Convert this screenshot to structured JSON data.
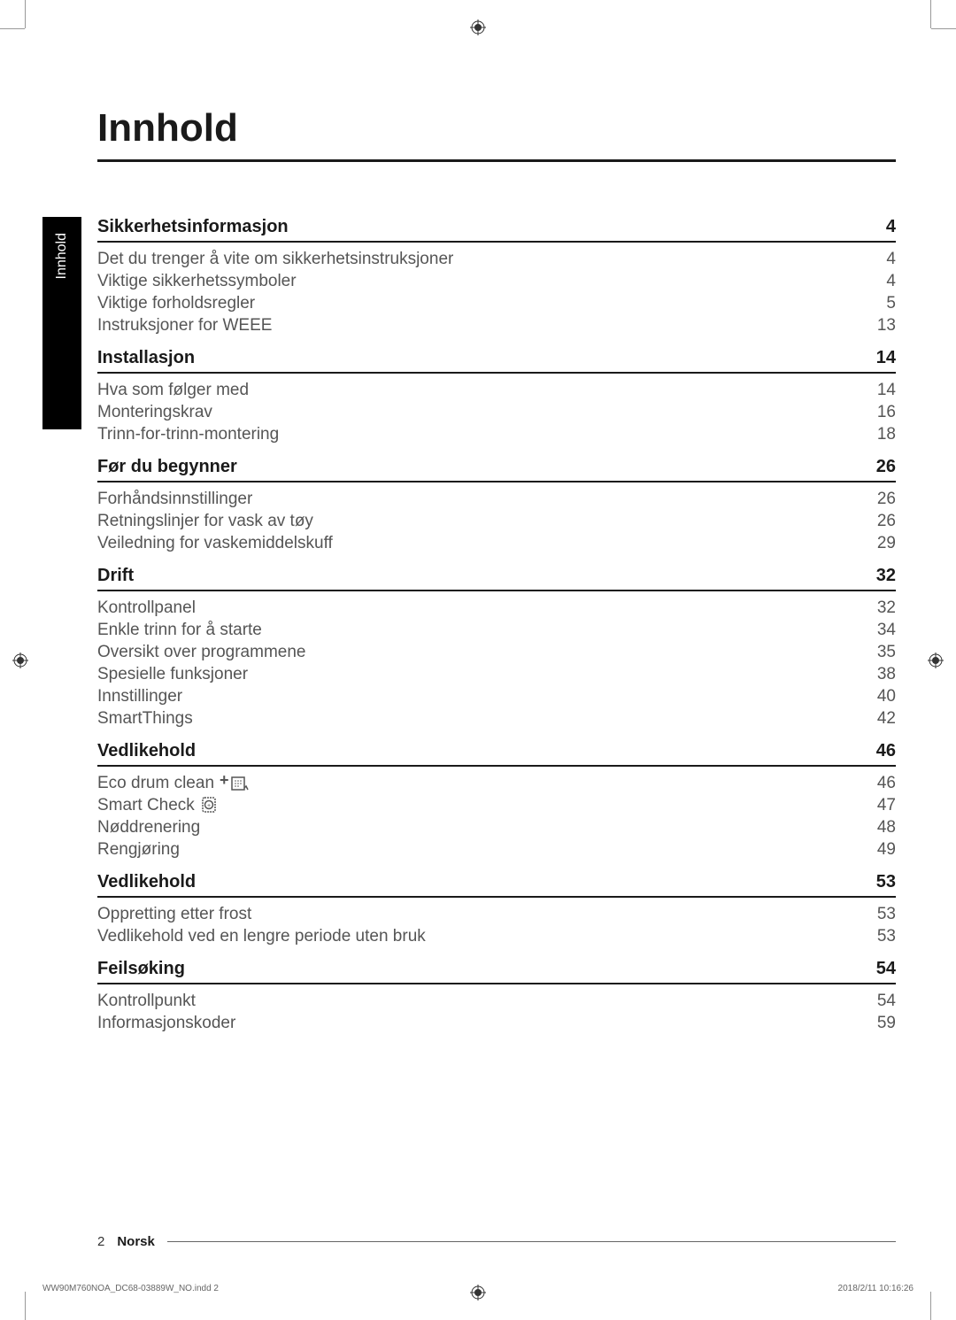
{
  "title": "Innhold",
  "side_tab": "Innhold",
  "colors": {
    "text": "#333333",
    "heading": "#1a1a1a",
    "body": "#555555",
    "tab_bg": "#000000",
    "tab_text": "#ffffff",
    "rule": "#1a1a1a"
  },
  "sections": [
    {
      "header": "Sikkerhetsinformasjon",
      "page": "4",
      "items": [
        {
          "label": "Det du trenger å vite om sikkerhetsinstruksjoner",
          "page": "4"
        },
        {
          "label": "Viktige sikkerhetssymboler",
          "page": "4"
        },
        {
          "label": "Viktige forholdsregler",
          "page": "5"
        },
        {
          "label": "Instruksjoner for WEEE",
          "page": "13"
        }
      ]
    },
    {
      "header": "Installasjon",
      "page": "14",
      "items": [
        {
          "label": "Hva som følger med",
          "page": "14"
        },
        {
          "label": "Monteringskrav",
          "page": "16"
        },
        {
          "label": "Trinn-for-trinn-montering",
          "page": "18"
        }
      ]
    },
    {
      "header": "Før du begynner",
      "page": "26",
      "items": [
        {
          "label": "Forhåndsinnstillinger",
          "page": "26"
        },
        {
          "label": "Retningslinjer for vask av tøy",
          "page": "26"
        },
        {
          "label": "Veiledning for vaskemiddelskuff",
          "page": "29"
        }
      ]
    },
    {
      "header": "Drift",
      "page": "32",
      "items": [
        {
          "label": "Kontrollpanel",
          "page": "32"
        },
        {
          "label": "Enkle trinn for å starte",
          "page": "34"
        },
        {
          "label": "Oversikt over programmene",
          "page": "35"
        },
        {
          "label": "Spesielle funksjoner",
          "page": "38"
        },
        {
          "label": "Innstillinger",
          "page": "40"
        },
        {
          "label": "SmartThings",
          "page": "42"
        }
      ]
    },
    {
      "header": "Vedlikehold",
      "page": "46",
      "items": [
        {
          "label": "Eco drum clean",
          "icon": "drum-clean",
          "page": "46"
        },
        {
          "label": "Smart Check",
          "icon": "smart-check",
          "page": "47"
        },
        {
          "label": "Nøddrenering",
          "page": "48"
        },
        {
          "label": "Rengjøring",
          "page": "49"
        }
      ]
    },
    {
      "header": "Vedlikehold",
      "page": "53",
      "items": [
        {
          "label": "Oppretting etter frost",
          "page": "53"
        },
        {
          "label": "Vedlikehold ved en lengre periode uten bruk",
          "page": "53"
        }
      ]
    },
    {
      "header": "Feilsøking",
      "page": "54",
      "items": [
        {
          "label": "Kontrollpunkt",
          "page": "54"
        },
        {
          "label": "Informasjonskoder",
          "page": "59"
        }
      ]
    }
  ],
  "footer": {
    "page_number": "2",
    "language": "Norsk"
  },
  "print_footer": {
    "left": "WW90M760NOA_DC68-03889W_NO.indd   2",
    "right": "2018/2/11   10:16:26"
  }
}
